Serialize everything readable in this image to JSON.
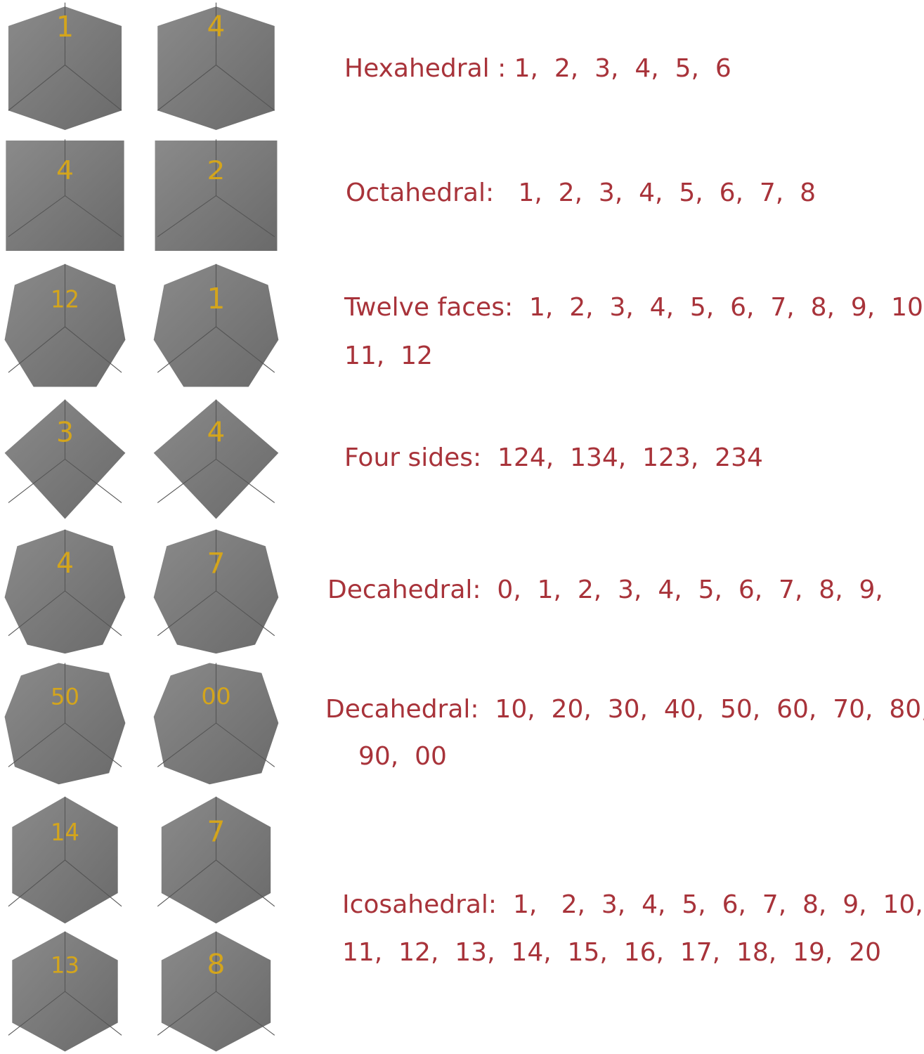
{
  "colors": {
    "text": "#a8333a",
    "die": "#6a6a6a",
    "die_light": "#8a8a8a",
    "numbers": "#d4a51c"
  },
  "dice": [
    {
      "type": "hexahedral",
      "numbers": [
        "1",
        "4"
      ]
    },
    {
      "type": "octahedral",
      "numbers": [
        "4",
        "2"
      ]
    },
    {
      "type": "twelve",
      "numbers": [
        "12",
        "1"
      ]
    },
    {
      "type": "four",
      "numbers": [
        "3",
        "4"
      ]
    },
    {
      "type": "decahedral",
      "numbers": [
        "4",
        "7"
      ]
    },
    {
      "type": "decahedral-tens",
      "numbers": [
        "50",
        "00"
      ]
    },
    {
      "type": "icosahedral-a",
      "numbers": [
        "14",
        "7"
      ]
    },
    {
      "type": "icosahedral-b",
      "numbers": [
        "13",
        "8"
      ]
    }
  ],
  "labels": {
    "hexahedral": "Hexahedral : 1,  2,  3,  4,  5,  6",
    "octahedral": "Octahedral:   1,  2,  3,  4,  5,  6,  7,  8",
    "twelve_1": "Twelve faces:  1,  2,  3,  4,  5,  6,  7,  8,  9,  10,",
    "twelve_2": "11,  12",
    "four": "Four sides:  124,  134,  123,  234",
    "decahedral": "Decahedral:  0,  1,  2,  3,  4,  5,  6,  7,  8,  9,",
    "decahedral_tens_1": "Decahedral:  10,  20,  30,  40,  50,  60,  70,  80,",
    "decahedral_tens_2": "90,  00",
    "icosahedral_1": "Icosahedral:  1,   2,  3,  4,  5,  6,  7,  8,  9,  10,",
    "icosahedral_2": "11,  12,  13,  14,  15,  16,  17,  18,  19,  20"
  }
}
